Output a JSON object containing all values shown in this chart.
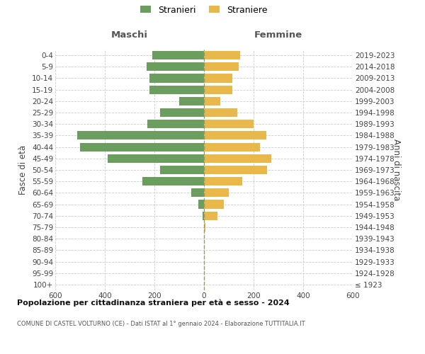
{
  "age_groups": [
    "100+",
    "95-99",
    "90-94",
    "85-89",
    "80-84",
    "75-79",
    "70-74",
    "65-69",
    "60-64",
    "55-59",
    "50-54",
    "45-49",
    "40-44",
    "35-39",
    "30-34",
    "25-29",
    "20-24",
    "15-19",
    "10-14",
    "5-9",
    "0-4"
  ],
  "birth_years": [
    "≤ 1923",
    "1924-1928",
    "1929-1933",
    "1934-1938",
    "1939-1943",
    "1944-1948",
    "1949-1953",
    "1954-1958",
    "1959-1963",
    "1964-1968",
    "1969-1973",
    "1974-1978",
    "1979-1983",
    "1984-1988",
    "1989-1993",
    "1994-1998",
    "1999-2003",
    "2004-2008",
    "2009-2013",
    "2014-2018",
    "2019-2023"
  ],
  "maschi": [
    0,
    0,
    0,
    0,
    0,
    0,
    5,
    22,
    52,
    248,
    178,
    390,
    500,
    510,
    230,
    178,
    100,
    220,
    220,
    232,
    210
  ],
  "femmine": [
    0,
    0,
    0,
    0,
    0,
    5,
    55,
    80,
    100,
    155,
    255,
    270,
    225,
    250,
    200,
    135,
    65,
    115,
    115,
    140,
    145
  ],
  "color_maschi": "#6b9e5e",
  "color_femmine": "#e8b84b",
  "title_main": "Popolazione per cittadinanza straniera per età e sesso - 2024",
  "title_sub": "COMUNE DI CASTEL VOLTURNO (CE) - Dati ISTAT al 1° gennaio 2024 - Elaborazione TUTTITALIA.IT",
  "label_maschi": "Stranieri",
  "label_femmine": "Straniere",
  "header_left": "Maschi",
  "header_right": "Femmine",
  "ylabel_left": "Fasce di età",
  "ylabel_right": "Anni di nascita",
  "xlim": 600,
  "xticks": [
    -600,
    -400,
    -200,
    0,
    200,
    400,
    600
  ],
  "background_color": "#ffffff",
  "grid_color": "#cccccc"
}
